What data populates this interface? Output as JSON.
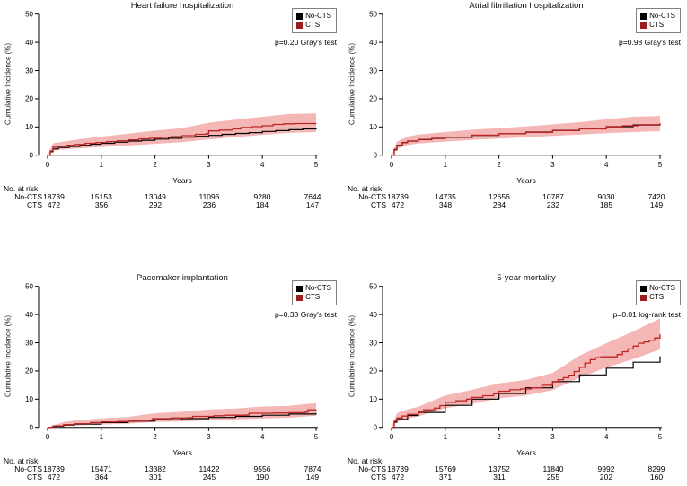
{
  "figure": {
    "y_axis_label": "Cumulative Incidence (%)",
    "x_axis_label": "Years",
    "risk_header": "No. at risk",
    "legend": [
      {
        "label": "No-CTS",
        "color": "#000000"
      },
      {
        "label": "CTS",
        "color": "#9e1b1b"
      }
    ],
    "band_color": "#f5b6b6",
    "axis_color": "#000000"
  },
  "chart_data": [
    {
      "type": "line",
      "title": "Heart failure hospitalization",
      "p_text": "p=0.20 Gray's test",
      "xlabel": "Years",
      "ylabel": "Cumulative Incidence (%)",
      "xlim": [
        0,
        5
      ],
      "ylim": [
        0,
        50
      ],
      "x_ticks": [
        0,
        1,
        2,
        3,
        4,
        5
      ],
      "y_ticks": [
        0,
        10,
        20,
        30,
        40,
        50
      ],
      "legend_position": "top-right",
      "series": [
        {
          "name": "No-CTS",
          "color": "#000000",
          "points": [
            [
              0,
              0
            ],
            [
              0.05,
              1.2
            ],
            [
              0.1,
              2.2
            ],
            [
              0.2,
              2.7
            ],
            [
              0.4,
              3.1
            ],
            [
              0.6,
              3.5
            ],
            [
              0.8,
              3.9
            ],
            [
              1,
              4.2
            ],
            [
              1.25,
              4.6
            ],
            [
              1.5,
              5.0
            ],
            [
              1.75,
              5.3
            ],
            [
              2,
              5.7
            ],
            [
              2.25,
              6.0
            ],
            [
              2.5,
              6.4
            ],
            [
              2.75,
              6.7
            ],
            [
              3,
              7.0
            ],
            [
              3.25,
              7.4
            ],
            [
              3.5,
              7.7
            ],
            [
              3.75,
              8.0
            ],
            [
              4,
              8.4
            ],
            [
              4.25,
              8.7
            ],
            [
              4.5,
              9.0
            ],
            [
              4.75,
              9.3
            ],
            [
              5,
              9.6
            ]
          ]
        },
        {
          "name": "CTS",
          "color": "#bb2626",
          "points": [
            [
              0,
              0
            ],
            [
              0.05,
              1.5
            ],
            [
              0.1,
              2.8
            ],
            [
              0.2,
              3.2
            ],
            [
              0.35,
              3.5
            ],
            [
              0.5,
              3.8
            ],
            [
              0.7,
              4.2
            ],
            [
              0.9,
              4.5
            ],
            [
              1.1,
              4.8
            ],
            [
              1.3,
              5.1
            ],
            [
              1.5,
              5.4
            ],
            [
              1.7,
              5.8
            ],
            [
              1.9,
              6.0
            ],
            [
              2.1,
              6.3
            ],
            [
              2.3,
              6.6
            ],
            [
              2.5,
              6.9
            ],
            [
              2.75,
              7.4
            ],
            [
              2.95,
              7.6
            ],
            [
              3,
              8.6
            ],
            [
              3.2,
              8.9
            ],
            [
              3.45,
              9.3
            ],
            [
              3.6,
              9.8
            ],
            [
              3.8,
              10.1
            ],
            [
              4,
              10.4
            ],
            [
              4.2,
              10.9
            ],
            [
              4.4,
              11.1
            ],
            [
              4.6,
              11.2
            ],
            [
              5,
              11.3
            ]
          ]
        }
      ],
      "band": {
        "series": "CTS",
        "x": [
          0,
          0.1,
          0.3,
          0.5,
          1,
          1.5,
          2,
          2.5,
          3,
          3.5,
          4,
          4.5,
          5
        ],
        "lower": [
          0,
          1.6,
          2.0,
          2.3,
          2.9,
          3.4,
          4.0,
          4.6,
          5.6,
          6.4,
          7.2,
          7.9,
          8.2
        ],
        "upper": [
          0,
          4.2,
          4.8,
          5.4,
          6.6,
          7.6,
          8.7,
          9.6,
          11.5,
          12.6,
          13.6,
          14.6,
          14.8
        ]
      },
      "risk": {
        "rows": [
          {
            "label": "No-CTS",
            "counts": [
              18739,
              15153,
              13049,
              11096,
              9280,
              7644
            ]
          },
          {
            "label": "CTS",
            "counts": [
              472,
              356,
              292,
              236,
              184,
              147
            ]
          }
        ]
      }
    },
    {
      "type": "line",
      "title": "Atrial fibrillation hospitalization",
      "p_text": "p=0.98 Gray's test",
      "xlabel": "Years",
      "ylabel": "Cumulative Incidence (%)",
      "xlim": [
        0,
        5
      ],
      "ylim": [
        0,
        50
      ],
      "x_ticks": [
        0,
        1,
        2,
        3,
        4,
        5
      ],
      "y_ticks": [
        0,
        10,
        20,
        30,
        40,
        50
      ],
      "legend_position": "top-right",
      "series": [
        {
          "name": "No-CTS",
          "color": "#000000",
          "points": [
            [
              0,
              0
            ],
            [
              0.05,
              2.0
            ],
            [
              0.1,
              3.5
            ],
            [
              0.2,
              4.5
            ],
            [
              0.3,
              5.0
            ],
            [
              0.5,
              5.5
            ],
            [
              0.75,
              5.9
            ],
            [
              1,
              6.3
            ],
            [
              1.5,
              7.0
            ],
            [
              2,
              7.6
            ],
            [
              2.5,
              8.2
            ],
            [
              3,
              8.8
            ],
            [
              3.5,
              9.4
            ],
            [
              4,
              10.1
            ],
            [
              4.5,
              10.7
            ],
            [
              5,
              11.3
            ]
          ]
        },
        {
          "name": "CTS",
          "color": "#bb2626",
          "points": [
            [
              0,
              0
            ],
            [
              0.05,
              1.8
            ],
            [
              0.1,
              3.3
            ],
            [
              0.2,
              4.4
            ],
            [
              0.3,
              5.0
            ],
            [
              0.5,
              5.6
            ],
            [
              0.75,
              6.0
            ],
            [
              1,
              6.4
            ],
            [
              1.5,
              7.1
            ],
            [
              2,
              7.6
            ],
            [
              2.5,
              8.1
            ],
            [
              3,
              8.7
            ],
            [
              3.5,
              9.3
            ],
            [
              4,
              10.0
            ],
            [
              4.3,
              10.4
            ],
            [
              4.6,
              10.8
            ],
            [
              5,
              11.2
            ]
          ]
        }
      ],
      "band": {
        "series": "CTS",
        "x": [
          0,
          0.1,
          0.3,
          0.5,
          1,
          1.5,
          2,
          2.5,
          3,
          3.5,
          4,
          4.5,
          5
        ],
        "lower": [
          0,
          2.2,
          3.6,
          4.1,
          4.8,
          5.4,
          5.9,
          6.3,
          6.8,
          7.3,
          7.8,
          8.2,
          8.5
        ],
        "upper": [
          0,
          4.8,
          6.6,
          7.3,
          8.2,
          9.0,
          9.6,
          10.2,
          10.9,
          11.7,
          12.7,
          13.6,
          13.9
        ]
      },
      "risk": {
        "rows": [
          {
            "label": "No-CTS",
            "counts": [
              18739,
              14735,
              12656,
              10787,
              9030,
              7420
            ]
          },
          {
            "label": "CTS",
            "counts": [
              472,
              348,
              284,
              232,
              185,
              149
            ]
          }
        ]
      }
    },
    {
      "type": "line",
      "title": "Pacemaker implantation",
      "p_text": "p=0.33 Gray's test",
      "xlabel": "Years",
      "ylabel": "Cumulative Incidence (%)",
      "xlim": [
        0,
        5
      ],
      "ylim": [
        0,
        50
      ],
      "x_ticks": [
        0,
        1,
        2,
        3,
        4,
        5
      ],
      "y_ticks": [
        0,
        10,
        20,
        30,
        40,
        50
      ],
      "legend_position": "top-right",
      "series": [
        {
          "name": "No-CTS",
          "color": "#000000",
          "points": [
            [
              0,
              0
            ],
            [
              0.1,
              0.4
            ],
            [
              0.3,
              0.8
            ],
            [
              0.5,
              1.1
            ],
            [
              1,
              1.7
            ],
            [
              1.5,
              2.2
            ],
            [
              2,
              2.7
            ],
            [
              2.5,
              3.1
            ],
            [
              3,
              3.5
            ],
            [
              3.5,
              3.9
            ],
            [
              4,
              4.3
            ],
            [
              4.5,
              4.7
            ],
            [
              5,
              5.1
            ]
          ]
        },
        {
          "name": "CTS",
          "color": "#bb2626",
          "points": [
            [
              0,
              0
            ],
            [
              0.1,
              0.5
            ],
            [
              0.3,
              1.0
            ],
            [
              0.5,
              1.3
            ],
            [
              0.8,
              1.7
            ],
            [
              1,
              1.9
            ],
            [
              1.3,
              2.1
            ],
            [
              1.6,
              2.3
            ],
            [
              1.9,
              2.5
            ],
            [
              1.95,
              3.1
            ],
            [
              2.3,
              3.3
            ],
            [
              2.6,
              3.4
            ],
            [
              2.7,
              3.9
            ],
            [
              3.1,
              4.1
            ],
            [
              3.3,
              4.3
            ],
            [
              3.7,
              4.4
            ],
            [
              3.75,
              5.0
            ],
            [
              4.2,
              5.1
            ],
            [
              4.5,
              5.2
            ],
            [
              4.8,
              5.4
            ],
            [
              4.85,
              6.2
            ],
            [
              5,
              6.3
            ]
          ]
        }
      ],
      "band": {
        "series": "CTS",
        "x": [
          0,
          0.3,
          0.5,
          1,
          1.5,
          2,
          2.5,
          3,
          3.5,
          4,
          4.5,
          5
        ],
        "lower": [
          0,
          0.4,
          0.6,
          1.0,
          1.3,
          1.9,
          2.1,
          2.5,
          2.8,
          3.2,
          3.4,
          4.1
        ],
        "upper": [
          0,
          1.9,
          2.4,
          3.2,
          3.7,
          5.0,
          5.5,
          6.3,
          6.7,
          7.4,
          7.6,
          8.6
        ]
      },
      "risk": {
        "rows": [
          {
            "label": "No-CTS",
            "counts": [
              18739,
              15471,
              13382,
              11422,
              9556,
              7874
            ]
          },
          {
            "label": "CTS",
            "counts": [
              472,
              364,
              301,
              245,
              190,
              149
            ]
          }
        ]
      }
    },
    {
      "type": "line",
      "title": "5-year mortality",
      "p_text": "p=0.01 log-rank test",
      "xlabel": "Years",
      "ylabel": "Cumulative Incidence (%)",
      "xlim": [
        0,
        5
      ],
      "ylim": [
        0,
        50
      ],
      "x_ticks": [
        0,
        1,
        2,
        3,
        4,
        5
      ],
      "y_ticks": [
        0,
        10,
        20,
        30,
        40,
        50
      ],
      "legend_position": "top-right",
      "series": [
        {
          "name": "No-CTS",
          "color": "#000000",
          "points": [
            [
              0,
              0
            ],
            [
              0.05,
              1.8
            ],
            [
              0.1,
              2.8
            ],
            [
              0.3,
              4.2
            ],
            [
              0.5,
              5.3
            ],
            [
              1,
              7.8
            ],
            [
              1.5,
              10.0
            ],
            [
              2,
              12.0
            ],
            [
              2.5,
              14.0
            ],
            [
              3,
              16.2
            ],
            [
              3.5,
              18.6
            ],
            [
              4,
              21.0
            ],
            [
              4.5,
              23.1
            ],
            [
              5,
              25.2
            ]
          ]
        },
        {
          "name": "CTS",
          "color": "#bb2626",
          "points": [
            [
              0,
              0
            ],
            [
              0.05,
              2.2
            ],
            [
              0.1,
              3.3
            ],
            [
              0.2,
              4.0
            ],
            [
              0.3,
              4.6
            ],
            [
              0.5,
              5.4
            ],
            [
              0.6,
              6.2
            ],
            [
              0.8,
              6.8
            ],
            [
              0.9,
              7.7
            ],
            [
              1,
              8.9
            ],
            [
              1.2,
              9.4
            ],
            [
              1.4,
              10.0
            ],
            [
              1.5,
              10.6
            ],
            [
              1.7,
              11.2
            ],
            [
              1.9,
              11.9
            ],
            [
              2,
              12.8
            ],
            [
              2.2,
              13.3
            ],
            [
              2.4,
              13.6
            ],
            [
              2.6,
              14.0
            ],
            [
              2.8,
              14.9
            ],
            [
              3,
              16.1
            ],
            [
              3.1,
              16.9
            ],
            [
              3.2,
              17.6
            ],
            [
              3.3,
              18.5
            ],
            [
              3.4,
              19.8
            ],
            [
              3.5,
              21.3
            ],
            [
              3.6,
              22.8
            ],
            [
              3.7,
              24.0
            ],
            [
              3.8,
              24.7
            ],
            [
              3.9,
              25.0
            ],
            [
              4.1,
              25.0
            ],
            [
              4.2,
              25.8
            ],
            [
              4.3,
              26.8
            ],
            [
              4.4,
              27.8
            ],
            [
              4.5,
              28.8
            ],
            [
              4.6,
              29.8
            ],
            [
              4.7,
              30.3
            ],
            [
              4.8,
              30.9
            ],
            [
              4.9,
              31.7
            ],
            [
              5,
              33.0
            ]
          ]
        }
      ],
      "band": {
        "series": "CTS",
        "x": [
          0,
          0.1,
          0.3,
          0.5,
          1,
          1.5,
          2,
          2.5,
          3,
          3.5,
          4,
          4.5,
          5
        ],
        "lower": [
          0,
          2.0,
          3.2,
          3.9,
          6.8,
          8.3,
          10.3,
          11.3,
          13.2,
          17.6,
          21.2,
          24.2,
          27.6
        ],
        "upper": [
          0,
          5.0,
          6.4,
          7.3,
          11.3,
          13.3,
          15.6,
          16.8,
          19.3,
          25.4,
          29.8,
          34.0,
          38.6
        ]
      },
      "risk": {
        "rows": [
          {
            "label": "No-CTS",
            "counts": [
              18739,
              15769,
              13752,
              11840,
              9992,
              8299
            ]
          },
          {
            "label": "CTS",
            "counts": [
              472,
              371,
              311,
              255,
              202,
              160
            ]
          }
        ]
      }
    }
  ]
}
